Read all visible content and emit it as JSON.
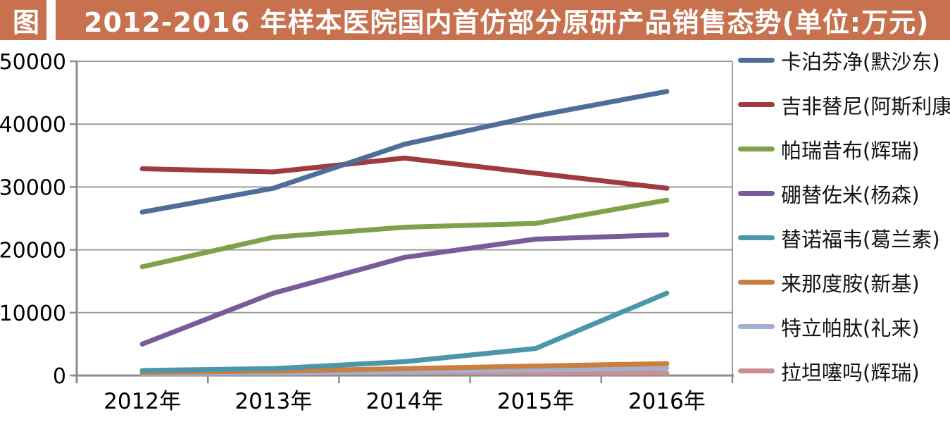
{
  "header": {
    "tag": "图",
    "title": "2012-2016 年样本医院国内首仿部分原研产品销售态势(单位:万元)",
    "bar_color": "#C7714E"
  },
  "chart_data": {
    "type": "line",
    "title": "2012-2016 年样本医院国内首仿部分原研产品销售态势",
    "unit": "万元",
    "categories": [
      "2012年",
      "2013年",
      "2014年",
      "2015年",
      "2016年"
    ],
    "y_ticks": [
      "0",
      "10000",
      "20000",
      "30000",
      "40000",
      "50000"
    ],
    "ylim": [
      0,
      50000
    ],
    "grid": "horizontal",
    "legend_position": "right",
    "axis_color": "#8C8C8C",
    "gridline_color": "#9D9D9D",
    "series": [
      {
        "name": "卡泊芬净(默沙东)",
        "color": "#4E6D9B",
        "values": [
          26000,
          29800,
          36800,
          41300,
          45200
        ]
      },
      {
        "name": "吉非替尼(阿斯利康)",
        "color": "#9E3B3E",
        "values": [
          32900,
          32400,
          34600,
          32200,
          29800
        ]
      },
      {
        "name": "帕瑞昔布(辉瑞)",
        "color": "#7EA24A",
        "values": [
          17300,
          22000,
          23600,
          24200,
          27900
        ]
      },
      {
        "name": "硼替佐米(杨森)",
        "color": "#7A5A9A",
        "values": [
          5000,
          13100,
          18800,
          21700,
          22400
        ]
      },
      {
        "name": "替诺福韦(葛兰素)",
        "color": "#4B96AB",
        "values": [
          800,
          1100,
          2200,
          4300,
          13100
        ]
      },
      {
        "name": "来那度胺(新基)",
        "color": "#CB7F3E",
        "values": [
          500,
          700,
          1100,
          1500,
          1900
        ]
      },
      {
        "name": "特立帕肽(礼来)",
        "color": "#A2B0CF",
        "values": [
          300,
          400,
          600,
          900,
          1200
        ]
      },
      {
        "name": "拉坦噻吗(辉瑞)",
        "color": "#CB8F93",
        "values": [
          550,
          500,
          500,
          450,
          400
        ]
      }
    ]
  }
}
